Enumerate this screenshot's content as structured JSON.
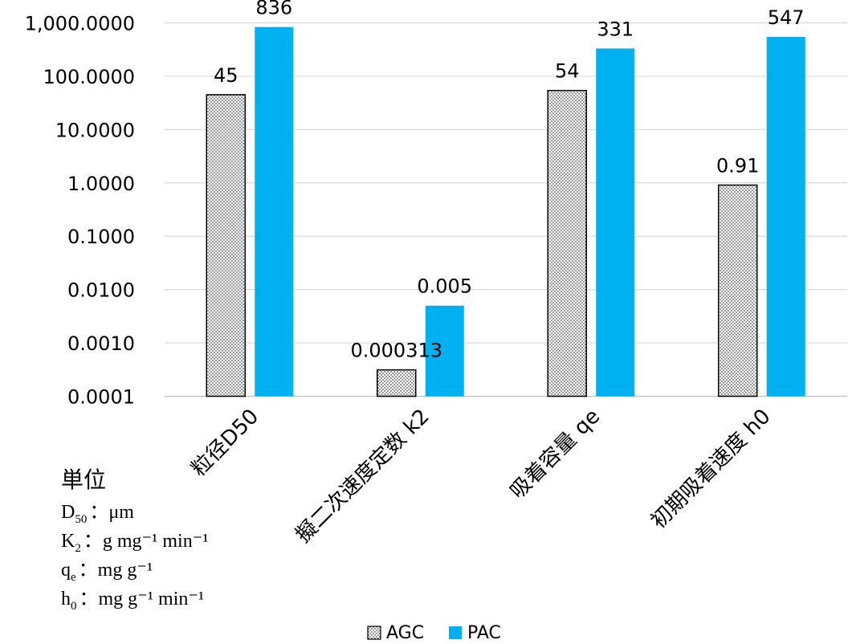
{
  "chart_data": {
    "type": "bar",
    "yscale": "log",
    "ylim": [
      0.0001,
      1000
    ],
    "yticks": [
      "0.0001",
      "0.0010",
      "0.0100",
      "0.1000",
      "1.0000",
      "10.0000",
      "100.0000",
      "1,000.0000"
    ],
    "categories": [
      "粒径D50",
      "擬二次速度定数 k2",
      "吸着容量 qe",
      "初期吸着速度 h0"
    ],
    "series": [
      {
        "name": "AGC",
        "values": [
          45,
          0.000313,
          54,
          0.91
        ],
        "labels": [
          "45",
          "0.000313",
          "54",
          "0.91"
        ],
        "pattern": "dotted",
        "color": "#ffffff"
      },
      {
        "name": "PAC",
        "values": [
          836,
          0.005,
          331,
          547
        ],
        "labels": [
          "836",
          "0.005",
          "331",
          "547"
        ],
        "color": "#00b0f0"
      }
    ],
    "grid": true,
    "legend": "bottom"
  },
  "units": {
    "title": "単位",
    "lines": [
      {
        "base": "D",
        "sub": "50",
        "rest": "：μm"
      },
      {
        "base": "K",
        "sub": "2",
        "rest": "：g mg⁻¹ min⁻¹"
      },
      {
        "base": "q",
        "sub": "e",
        "rest": "：mg g⁻¹"
      },
      {
        "base": "h",
        "sub": "0",
        "rest": "：mg g⁻¹ min⁻¹"
      }
    ]
  }
}
